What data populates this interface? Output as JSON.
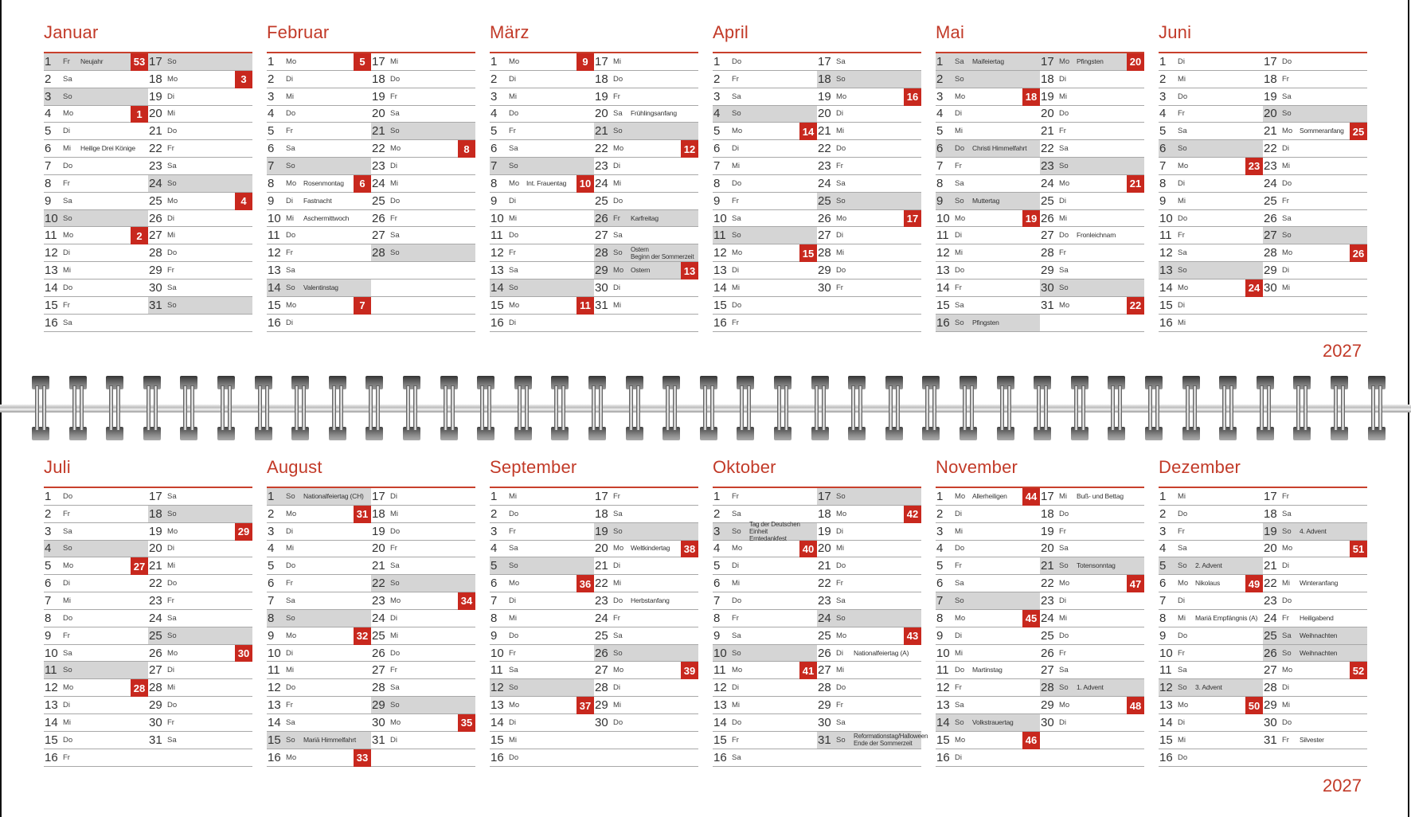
{
  "year_label": "2027",
  "weekday_names": [
    "Mo",
    "Di",
    "Mi",
    "Do",
    "Fr",
    "Sa",
    "So"
  ],
  "colors": {
    "accent": "#c8281e",
    "title": "#c23a28",
    "shade": "#d5d5d5"
  },
  "months": [
    {
      "name": "Januar",
      "first_weekday": 4,
      "days": 31,
      "notes": {
        "1": "Neujahr",
        "6": "Heilige Drei Könige"
      },
      "weeks": {
        "1": 53,
        "4": 1,
        "11": 2,
        "18": 3,
        "25": 4
      },
      "holidays": [
        1
      ]
    },
    {
      "name": "Februar",
      "first_weekday": 0,
      "days": 28,
      "notes": {
        "8": "Rosenmontag",
        "9": "Fastnacht",
        "10": "Aschermittwoch",
        "14": "Valentinstag"
      },
      "weeks": {
        "1": 5,
        "8": 6,
        "15": 7,
        "22": 8
      },
      "holidays": []
    },
    {
      "name": "März",
      "first_weekday": 0,
      "days": 31,
      "notes": {
        "8": "Int. Frauentag",
        "20": "Frühlingsanfang",
        "26": "Karfreitag",
        "28": "Ostern\nBeginn der Sommerzeit",
        "29": "Ostern"
      },
      "weeks": {
        "1": 9,
        "8": 10,
        "15": 11,
        "22": 12,
        "29": 13
      },
      "holidays": [
        26,
        29
      ]
    },
    {
      "name": "April",
      "first_weekday": 3,
      "days": 30,
      "notes": {},
      "weeks": {
        "5": 14,
        "12": 15,
        "19": 16,
        "26": 17
      },
      "holidays": []
    },
    {
      "name": "Mai",
      "first_weekday": 5,
      "days": 31,
      "notes": {
        "1": "Maifeiertag",
        "6": "Christi Himmelfahrt",
        "9": "Muttertag",
        "16": "Pfingsten",
        "17": "Pfingsten",
        "27": "Fronleichnam"
      },
      "weeks": {
        "3": 18,
        "10": 19,
        "17": 20,
        "24": 21,
        "31": 22
      },
      "holidays": [
        1,
        6,
        17
      ]
    },
    {
      "name": "Juni",
      "first_weekday": 1,
      "days": 30,
      "notes": {
        "21": "Sommeranfang"
      },
      "weeks": {
        "7": 23,
        "14": 24,
        "21": 25,
        "28": 26
      },
      "holidays": []
    },
    {
      "name": "Juli",
      "first_weekday": 3,
      "days": 31,
      "notes": {},
      "weeks": {
        "5": 27,
        "12": 28,
        "19": 29,
        "26": 30
      },
      "holidays": []
    },
    {
      "name": "August",
      "first_weekday": 6,
      "days": 31,
      "notes": {
        "1": "Nationalfeiertag (CH)",
        "15": "Mariä Himmelfahrt"
      },
      "weeks": {
        "2": 31,
        "9": 32,
        "16": 33,
        "23": 34,
        "30": 35
      },
      "holidays": []
    },
    {
      "name": "September",
      "first_weekday": 2,
      "days": 30,
      "notes": {
        "20": "Weltkindertag",
        "23": "Herbstanfang"
      },
      "weeks": {
        "6": 36,
        "13": 37,
        "20": 38,
        "27": 39
      },
      "holidays": []
    },
    {
      "name": "Oktober",
      "first_weekday": 4,
      "days": 31,
      "notes": {
        "3": "Tag der Deutschen Einheit\nErntedankfest",
        "26": "Nationalfeiertag (A)",
        "31": "Reformationstag/Halloween\nEnde der Sommerzeit"
      },
      "weeks": {
        "4": 40,
        "11": 41,
        "18": 42,
        "25": 43
      },
      "holidays": []
    },
    {
      "name": "November",
      "first_weekday": 0,
      "days": 30,
      "notes": {
        "1": "Allerheiligen",
        "11": "Martinstag",
        "14": "Volkstrauertag",
        "17": "Buß- und Bettag",
        "21": "Totensonntag",
        "28": "1. Advent"
      },
      "weeks": {
        "1": 44,
        "8": 45,
        "15": 46,
        "22": 47,
        "29": 48
      },
      "holidays": []
    },
    {
      "name": "Dezember",
      "first_weekday": 2,
      "days": 31,
      "notes": {
        "5": "2. Advent",
        "6": "Nikolaus",
        "8": "Mariä Empfängnis (A)",
        "12": "3. Advent",
        "19": "4. Advent",
        "22": "Winteranfang",
        "24": "Heiligabend",
        "25": "Weihnachten",
        "26": "Weihnachten",
        "31": "Silvester"
      },
      "weeks": {
        "6": 49,
        "13": 50,
        "20": 51,
        "27": 52
      },
      "holidays": [
        25
      ]
    }
  ]
}
